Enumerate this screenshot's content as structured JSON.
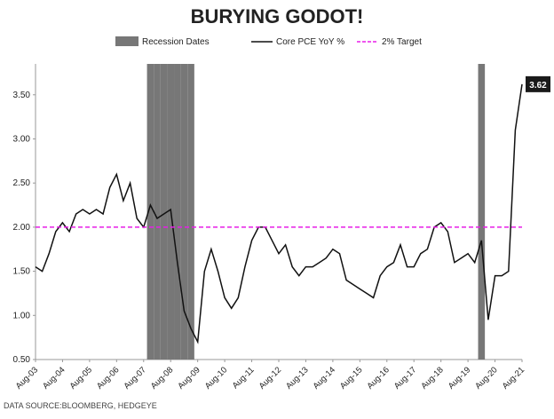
{
  "chart_data": {
    "type": "line",
    "title": "BURYING GODOT!",
    "source": "DATA SOURCE:BLOOMBERG, HEDGEYE",
    "categories": [
      "Aug-03",
      null,
      null,
      null,
      "Aug-04",
      null,
      null,
      null,
      "Aug-05",
      null,
      null,
      null,
      "Aug-06",
      null,
      null,
      null,
      "Aug-07",
      null,
      null,
      null,
      "Aug-08",
      null,
      null,
      null,
      "Aug-09",
      null,
      null,
      null,
      "Aug-10",
      null,
      null,
      null,
      "Aug-11",
      null,
      null,
      null,
      "Aug-12",
      null,
      null,
      null,
      "Aug-13",
      null,
      null,
      null,
      "Aug-14",
      null,
      null,
      null,
      "Aug-15",
      null,
      null,
      null,
      "Aug-16",
      null,
      null,
      null,
      "Aug-17",
      null,
      null,
      null,
      "Aug-18",
      null,
      null,
      null,
      "Aug-19",
      null,
      null,
      null,
      "Aug-20",
      null,
      null,
      null,
      "Aug-21"
    ],
    "series": [
      {
        "name": "Recession Dates",
        "type": "bar",
        "axis": "y2",
        "color": "#777777",
        "values": [
          null,
          null,
          null,
          null,
          null,
          null,
          null,
          null,
          null,
          null,
          null,
          null,
          null,
          null,
          null,
          null,
          null,
          1,
          1,
          1,
          1,
          1,
          1,
          1,
          null,
          null,
          null,
          null,
          null,
          null,
          null,
          null,
          null,
          null,
          null,
          null,
          null,
          null,
          null,
          null,
          null,
          null,
          null,
          null,
          null,
          null,
          null,
          null,
          null,
          null,
          null,
          null,
          null,
          null,
          null,
          null,
          null,
          null,
          null,
          null,
          null,
          null,
          null,
          null,
          null,
          null,
          1,
          null,
          null,
          null,
          null,
          null,
          null
        ]
      },
      {
        "name": "Core PCE YoY %",
        "type": "line",
        "color": "#111111",
        "values": [
          1.55,
          1.5,
          1.7,
          1.95,
          2.05,
          1.95,
          2.15,
          2.2,
          2.15,
          2.2,
          2.15,
          2.45,
          2.6,
          2.3,
          2.5,
          2.1,
          2.0,
          2.25,
          2.1,
          2.15,
          2.2,
          1.6,
          1.05,
          0.85,
          0.7,
          1.5,
          1.75,
          1.5,
          1.2,
          1.08,
          1.2,
          1.55,
          1.85,
          2.0,
          2.0,
          1.85,
          1.7,
          1.8,
          1.55,
          1.45,
          1.55,
          1.55,
          1.6,
          1.65,
          1.75,
          1.7,
          1.4,
          1.35,
          1.3,
          1.25,
          1.2,
          1.45,
          1.55,
          1.6,
          1.8,
          1.55,
          1.55,
          1.7,
          1.75,
          2.0,
          2.05,
          1.95,
          1.6,
          1.65,
          1.7,
          1.6,
          1.85,
          0.95,
          1.45,
          1.45,
          1.5,
          3.1,
          3.62
        ]
      },
      {
        "name": "2% Target",
        "type": "line",
        "dashed": true,
        "color": "#e81ee8",
        "values": [
          2,
          2,
          2,
          2,
          2,
          2,
          2,
          2,
          2,
          2,
          2,
          2,
          2,
          2,
          2,
          2,
          2,
          2,
          2,
          2,
          2,
          2,
          2,
          2,
          2,
          2,
          2,
          2,
          2,
          2,
          2,
          2,
          2,
          2,
          2,
          2,
          2,
          2,
          2,
          2,
          2,
          2,
          2,
          2,
          2,
          2,
          2,
          2,
          2,
          2,
          2,
          2,
          2,
          2,
          2,
          2,
          2,
          2,
          2,
          2,
          2,
          2,
          2,
          2,
          2,
          2,
          2,
          2,
          2,
          2,
          2,
          2,
          2
        ]
      }
    ],
    "ylim": [
      0.5,
      3.85
    ],
    "yticks": [
      {
        "value": 0.5,
        "label": "0.50"
      },
      {
        "value": 1,
        "label": "1.00"
      },
      {
        "value": 1.5,
        "label": "1.50"
      },
      {
        "value": 2,
        "label": "2.00"
      },
      {
        "value": 2.5,
        "label": "2.50"
      },
      {
        "value": 3,
        "label": "3.00"
      },
      {
        "value": 3.5,
        "label": "3.50"
      }
    ],
    "y2lim": [
      0,
      1
    ]
  }
}
